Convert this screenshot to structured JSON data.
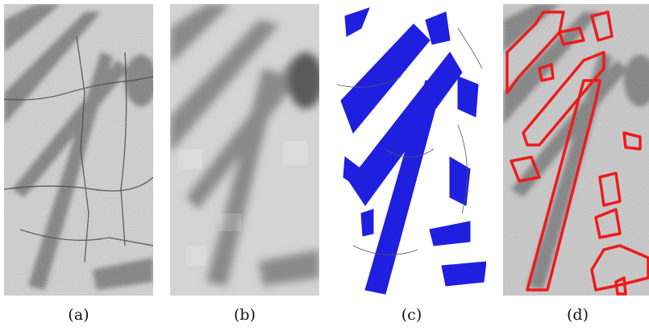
{
  "figure": {
    "panels": [
      {
        "id": "a",
        "caption": "(a)"
      },
      {
        "id": "b",
        "caption": "(b)"
      },
      {
        "id": "c",
        "caption": "(c)"
      },
      {
        "id": "d",
        "caption": "(d)"
      }
    ]
  },
  "colors": {
    "background": "#ffffff",
    "graph_fill": "#1f1fe0",
    "outline": "#ee1b1b"
  }
}
